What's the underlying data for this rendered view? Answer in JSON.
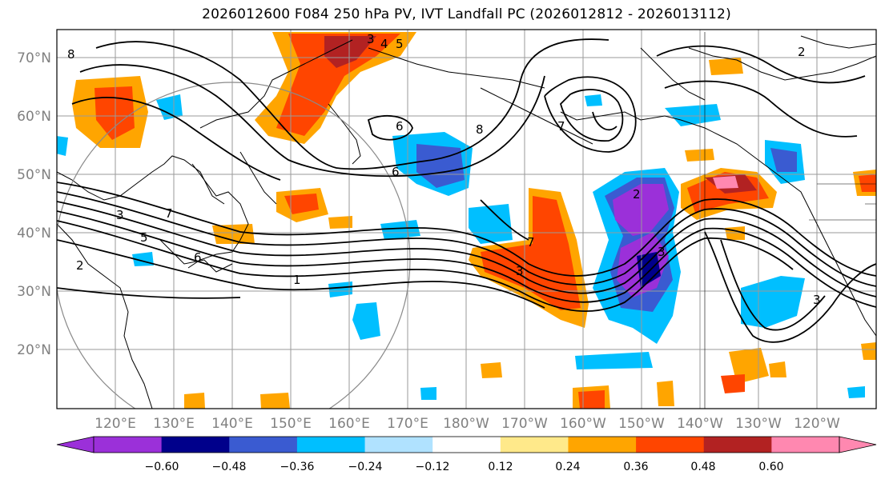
{
  "title": "2026012600 F084 250 hPa PV, IVT Landfall PC (2026012812 - 2026013112)",
  "latitude_labels": [
    "70°N",
    "60°N",
    "50°N",
    "40°N",
    "30°N",
    "20°N"
  ],
  "longitude_labels": [
    "120°E",
    "130°E",
    "140°E",
    "150°E",
    "160°E",
    "170°E",
    "180°W",
    "170°W",
    "160°W",
    "150°W",
    "140°W",
    "130°W",
    "120°W"
  ],
  "colorbar": {
    "ticks": [
      "−0.60",
      "−0.48",
      "−0.36",
      "−0.24",
      "−0.12",
      "0.12",
      "0.24",
      "0.36",
      "0.48",
      "0.60"
    ],
    "colors": [
      "#9b30d9",
      "#00008b",
      "#3a5bd1",
      "#00bfff",
      "#b0e2ff",
      "#ffffff",
      "#ffe98a",
      "#ffa500",
      "#ff4500",
      "#b22222",
      "#ff88b0"
    ]
  },
  "contour_labels": [
    "8",
    "3",
    "4",
    "5",
    "6",
    "8",
    "7",
    "6",
    "2",
    "3",
    "5",
    "7",
    "6",
    "3",
    "1",
    "7",
    "3",
    "2",
    "3",
    "2"
  ]
}
